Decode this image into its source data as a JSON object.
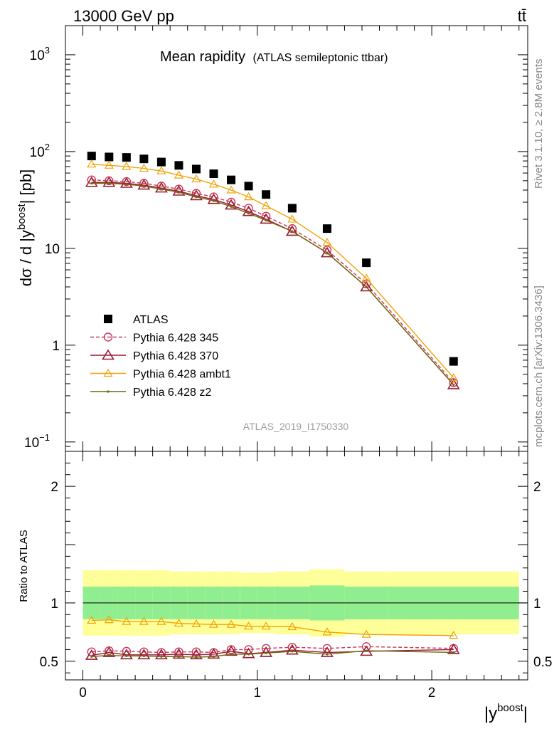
{
  "header": {
    "energy_label": "13000 GeV pp",
    "process_label": "tt̄"
  },
  "side_labels": {
    "rivet": "Rivet 3.1.10, ≥ 2.8M events",
    "mcplots": "mcplots.cern.ch [arXiv:1306.3436]"
  },
  "chart_data": [
    {
      "type": "scatter",
      "title": "Mean rapidity",
      "subtitle": "(ATLAS semileptonic ttbar)",
      "watermark": "ATLAS_2019_I1750330",
      "ylabel": "dσ / d |y",
      "ylabel_sup": "boost",
      "ylabel_tail": "| [pb]",
      "yscale": "log",
      "ylim": [
        0.08,
        2000
      ],
      "xlim": [
        -0.1,
        2.55
      ],
      "y_ticks": [
        {
          "value": 0.1,
          "label": "10",
          "sup": "−1"
        },
        {
          "value": 1,
          "label": "1",
          "sup": ""
        },
        {
          "value": 10,
          "label": "10",
          "sup": ""
        },
        {
          "value": 100,
          "label": "10",
          "sup": "2"
        },
        {
          "value": 1000,
          "label": "10",
          "sup": "3"
        }
      ],
      "legend_position": "bottom-left",
      "x": [
        0.05,
        0.15,
        0.25,
        0.35,
        0.45,
        0.55,
        0.65,
        0.75,
        0.85,
        0.95,
        1.05,
        1.2,
        1.4,
        1.625,
        2.125
      ],
      "series": [
        {
          "name": "ATLAS",
          "color": "#000000",
          "marker": "square",
          "line": "none",
          "values": [
            90,
            88,
            87,
            84,
            78,
            72,
            66,
            59,
            51,
            44,
            36,
            26,
            16,
            7.1,
            0.68
          ]
        },
        {
          "name": "Pythia 6.428 345",
          "color": "#c8385a",
          "marker": "circle",
          "line": "dashed",
          "values": [
            51,
            50,
            49,
            47,
            44,
            41,
            37,
            34,
            30,
            26,
            21.5,
            16,
            9.6,
            4.3,
            0.41
          ]
        },
        {
          "name": "Pythia 6.428 370",
          "color": "#9b1a35",
          "marker": "triangle",
          "line": "solid",
          "values": [
            48,
            48,
            47,
            45,
            42,
            39,
            35,
            32,
            28,
            24,
            20,
            15,
            9,
            4,
            0.39
          ]
        },
        {
          "name": "Pythia 6.428 ambt1",
          "color": "#f0a30a",
          "marker": "triangle-open",
          "line": "solid",
          "values": [
            74,
            72,
            70,
            67,
            63,
            57,
            52,
            46,
            40,
            34,
            27.5,
            20,
            11.5,
            4.9,
            0.46
          ]
        },
        {
          "name": "Pythia 6.428 z2",
          "color": "#6b6b0c",
          "marker": "dot",
          "line": "solid",
          "values": [
            47,
            47,
            46,
            44,
            41,
            38,
            34,
            31,
            27,
            23,
            19.5,
            15,
            9,
            4,
            0.39
          ]
        }
      ]
    },
    {
      "type": "line",
      "ylabel": "Ratio to ATLAS",
      "xlabel": "|y",
      "xlabel_sup": "boost",
      "xlabel_tail": "|",
      "ylim": [
        0.34,
        2.3
      ],
      "xlim": [
        -0.1,
        2.55
      ],
      "x_ticks": [
        0,
        1,
        2
      ],
      "y_ticks": [
        0.5,
        1,
        2
      ],
      "bins": [
        0,
        0.1,
        0.2,
        0.3,
        0.4,
        0.5,
        0.6,
        0.7,
        0.8,
        0.9,
        1.0,
        1.1,
        1.3,
        1.5,
        1.75,
        2.5
      ],
      "band_stat": [
        0.14,
        0.14,
        0.14,
        0.14,
        0.14,
        0.14,
        0.14,
        0.14,
        0.14,
        0.14,
        0.14,
        0.14,
        0.15,
        0.14,
        0.14
      ],
      "band_total": [
        0.28,
        0.28,
        0.28,
        0.28,
        0.28,
        0.27,
        0.27,
        0.27,
        0.27,
        0.26,
        0.26,
        0.27,
        0.29,
        0.27,
        0.27
      ],
      "x": [
        0.05,
        0.15,
        0.25,
        0.35,
        0.45,
        0.55,
        0.65,
        0.75,
        0.85,
        0.95,
        1.05,
        1.2,
        1.4,
        1.625,
        2.125
      ],
      "series": [
        {
          "name": "Pythia 6.428 345",
          "color": "#c8385a",
          "marker": "circle",
          "line": "dashed",
          "values": [
            0.58,
            0.59,
            0.585,
            0.58,
            0.575,
            0.58,
            0.58,
            0.575,
            0.6,
            0.6,
            0.61,
            0.62,
            0.61,
            0.625,
            0.61
          ]
        },
        {
          "name": "Pythia 6.428 370",
          "color": "#9b1a35",
          "marker": "triangle",
          "line": "solid",
          "values": [
            0.55,
            0.575,
            0.555,
            0.555,
            0.555,
            0.56,
            0.555,
            0.56,
            0.585,
            0.565,
            0.575,
            0.595,
            0.575,
            0.585,
            0.6
          ]
        },
        {
          "name": "Pythia 6.428 ambt1",
          "color": "#f0a30a",
          "marker": "triangle-open",
          "line": "solid",
          "values": [
            0.85,
            0.855,
            0.84,
            0.84,
            0.84,
            0.825,
            0.82,
            0.815,
            0.815,
            0.8,
            0.8,
            0.795,
            0.75,
            0.73,
            0.72
          ]
        },
        {
          "name": "Pythia 6.428 z2",
          "color": "#6b6b0c",
          "marker": "dot",
          "line": "solid",
          "values": [
            0.54,
            0.55,
            0.545,
            0.545,
            0.54,
            0.54,
            0.535,
            0.54,
            0.56,
            0.56,
            0.57,
            0.585,
            0.56,
            0.59,
            0.575
          ]
        }
      ]
    }
  ]
}
